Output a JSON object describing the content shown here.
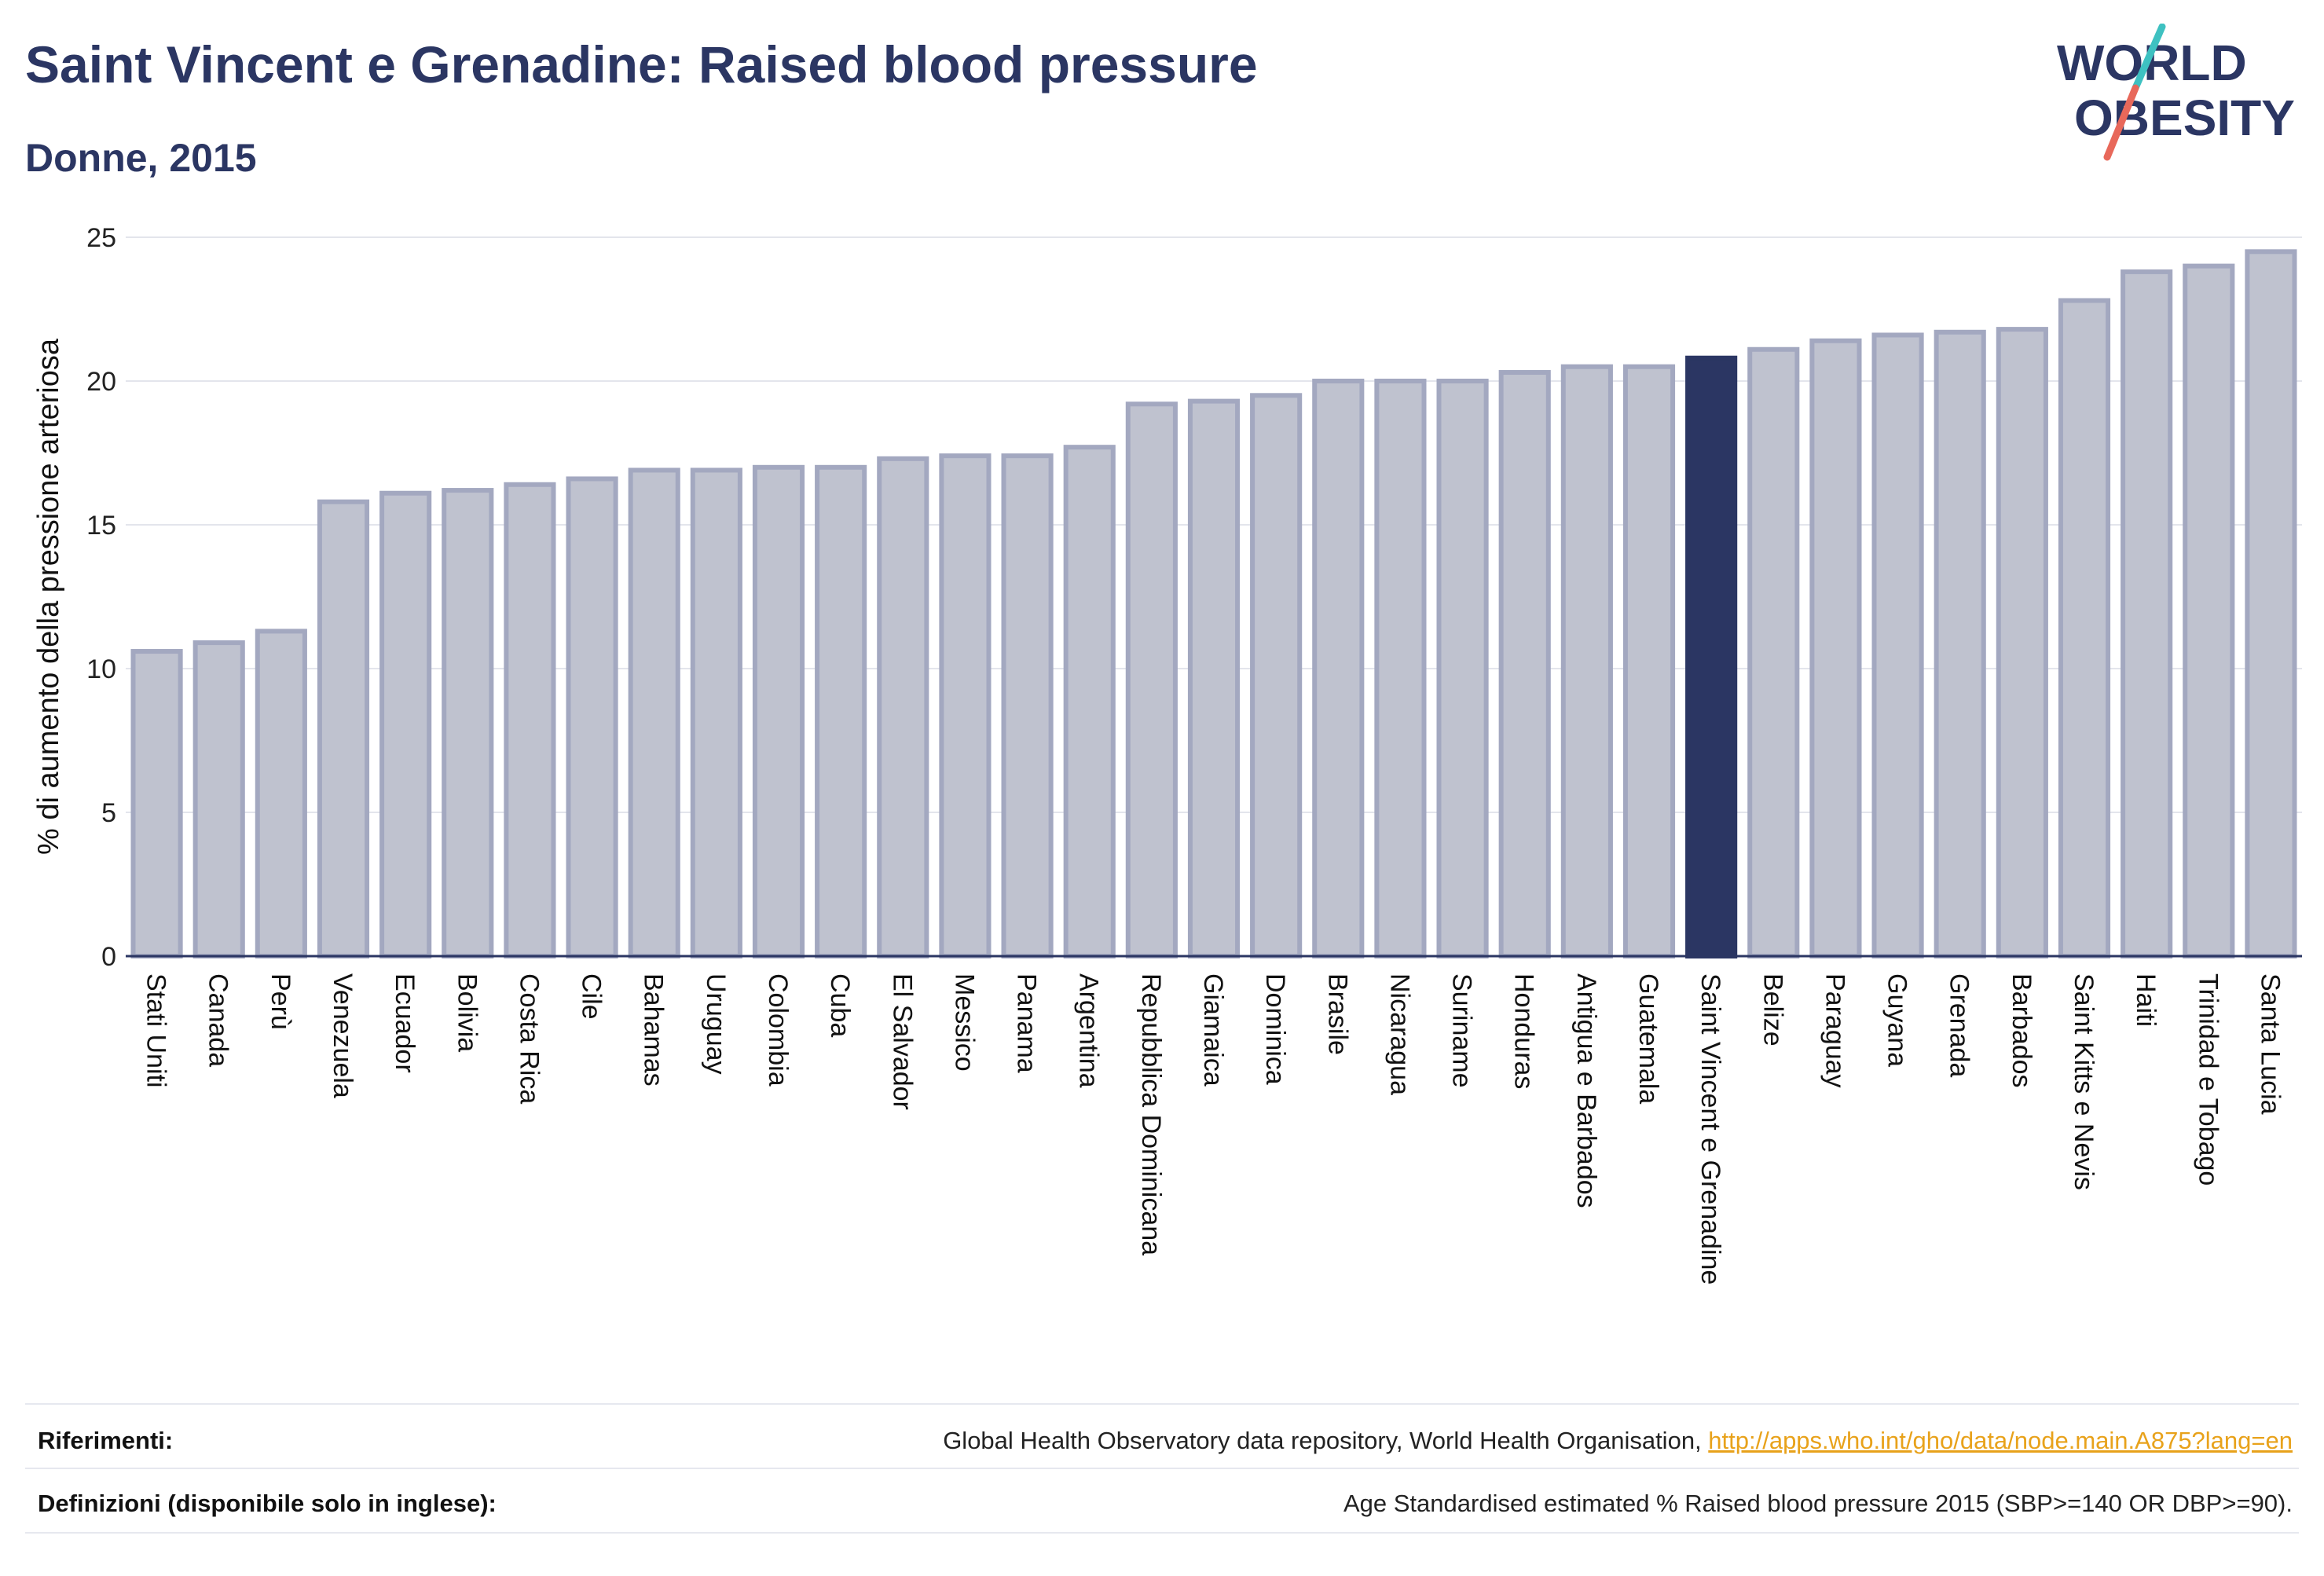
{
  "header": {
    "title": "Saint Vincent e Grenadine: Raised blood pressure",
    "subtitle": "Donne, 2015"
  },
  "logo": {
    "line1": "WORLD",
    "line2": "OBESITY",
    "slash_color_top": "#3ec1c1",
    "slash_color_bottom": "#e8685a"
  },
  "chart_data": {
    "type": "bar",
    "title": "Saint Vincent e Grenadine: Raised blood pressure",
    "subtitle": "Donne, 2015",
    "xlabel": "",
    "ylabel": "% di aumento della pressione arteriosa",
    "ylim": [
      0,
      25
    ],
    "yticks": [
      0,
      5,
      10,
      15,
      20,
      25
    ],
    "grid": true,
    "highlight": "Saint Vincent e Grenadine",
    "colors": {
      "bar": "#bfc2cf",
      "bar_border": "#a3a8c0",
      "highlight": "#2b3663"
    },
    "categories": [
      "Stati Uniti",
      "Canada",
      "Perù",
      "Venezuela",
      "Ecuador",
      "Bolivia",
      "Costa Rica",
      "Cile",
      "Bahamas",
      "Uruguay",
      "Colombia",
      "Cuba",
      "El Salvador",
      "Messico",
      "Panama",
      "Argentina",
      "Repubblica Dominicana",
      "Giamaica",
      "Dominica",
      "Brasile",
      "Nicaragua",
      "Suriname",
      "Honduras",
      "Antigua e Barbados",
      "Guatemala",
      "Saint Vincent e Grenadine",
      "Belize",
      "Paraguay",
      "Guyana",
      "Grenada",
      "Barbados",
      "Saint Kitts e Nevis",
      "Haiti",
      "Trinidad e Tobago",
      "Santa Lucia"
    ],
    "values": [
      10.6,
      10.9,
      11.3,
      15.8,
      16.1,
      16.2,
      16.4,
      16.6,
      16.9,
      16.9,
      17.0,
      17.0,
      17.3,
      17.4,
      17.4,
      17.7,
      19.2,
      19.3,
      19.5,
      20.0,
      20.0,
      20.0,
      20.3,
      20.5,
      20.5,
      20.8,
      21.1,
      21.4,
      21.6,
      21.7,
      21.8,
      22.8,
      23.8,
      24.0,
      24.5
    ]
  },
  "footer": {
    "references_label": "Riferimenti:",
    "references_text": "Global Health Observatory data repository, World Health Organisation, ",
    "references_link": "http://apps.who.int/gho/data/node.main.A875?lang=en",
    "definitions_label": "Definizioni (disponibile solo in inglese):",
    "definitions_text": "Age Standardised estimated % Raised blood pressure 2015 (SBP>=140 OR DBP>=90)."
  }
}
